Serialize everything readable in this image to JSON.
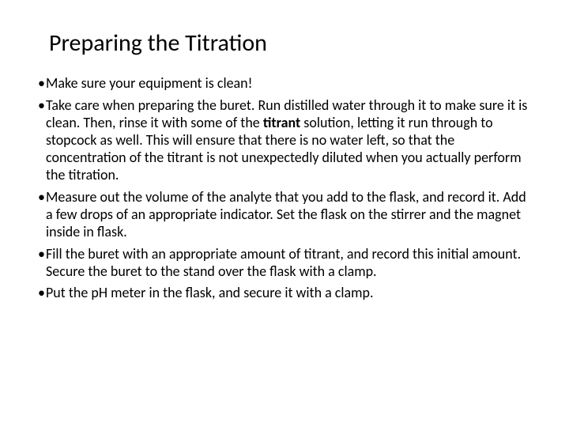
{
  "slide": {
    "title": "Preparing the Titration",
    "bullets": [
      {
        "pre": "Make sure your equipment is clean!",
        "bold": "",
        "post": ""
      },
      {
        "pre": "Take care when preparing the buret. Run distilled water through it to make sure it is clean. Then, rinse it with some of the ",
        "bold": "titrant",
        "post": " solution, letting it run through to stopcock as well. This will ensure that there is no water left, so that the concentration of the titrant is not unexpectedly diluted when you actually perform the titration."
      },
      {
        "pre": "Measure out the volume of the analyte that you add to the flask, and record it. Add a few drops of an appropriate indicator. Set the flask on the stirrer and the magnet inside in flask.",
        "bold": "",
        "post": ""
      },
      {
        "pre": "Fill the buret with an appropriate amount of titrant, and record this initial amount. Secure the buret to the stand over the flask with a clamp.",
        "bold": "",
        "post": ""
      },
      {
        "pre": "Put the pH meter in the flask, and secure it with a clamp.",
        "bold": "",
        "post": ""
      }
    ]
  },
  "style": {
    "background_color": "#ffffff",
    "text_color": "#000000",
    "title_fontsize": 30,
    "body_fontsize": 18,
    "font_family": "Calibri"
  }
}
